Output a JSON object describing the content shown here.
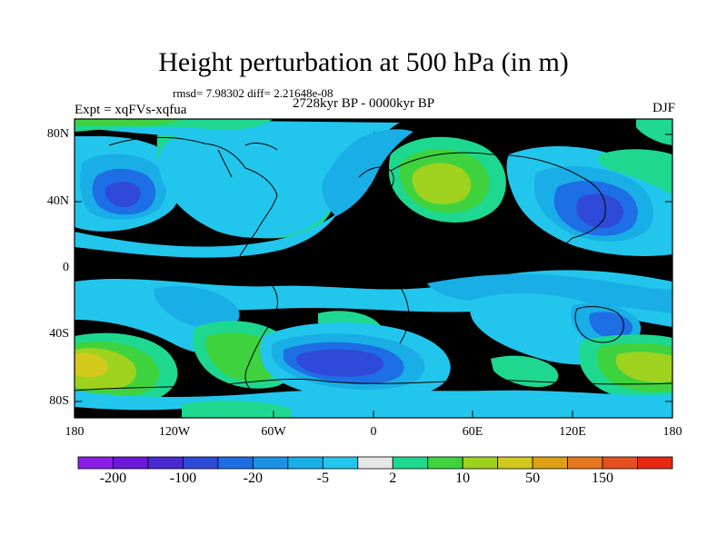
{
  "title": "Height perturbation at 500 hPa (in m)",
  "stats": "rmsd= 7.98302 diff= 2.21648e-08",
  "experiment": "Expt = xqFVs-xqfua",
  "period": "2728kyr BP - 0000kyr BP",
  "season": "DJF",
  "axes": {
    "y_ticks": [
      "80N",
      "40N",
      "0",
      "40S",
      "80S"
    ],
    "x_ticks": [
      "180",
      "120W",
      "60W",
      "0",
      "60E",
      "120E",
      "180"
    ]
  },
  "colorbar": {
    "colors": [
      "#8a1ee6",
      "#6a1ad8",
      "#4a28d2",
      "#2f4ad8",
      "#1e6ee6",
      "#1c92e6",
      "#19aee6",
      "#22c6ec",
      "#e6e6e6",
      "#1ed890",
      "#3ed23e",
      "#9ed21e",
      "#d2c81e",
      "#dca014",
      "#e6781e",
      "#e6501e",
      "#e62814"
    ],
    "labels": [
      "-200",
      "-100",
      "-20",
      "-5",
      "2",
      "10",
      "50",
      "150"
    ]
  },
  "palette": {
    "background": "#e6e6e6",
    "neg_light": "#22c6ec",
    "neg_mid": "#19aee6",
    "neg_strong": "#1e6ee6",
    "neg_deep": "#2f4ad8",
    "pos_light": "#1ed890",
    "pos_mid": "#3ed23e",
    "pos_strong": "#9ed21e",
    "pos_deep": "#d2c81e",
    "pos_peak": "#dca014"
  }
}
